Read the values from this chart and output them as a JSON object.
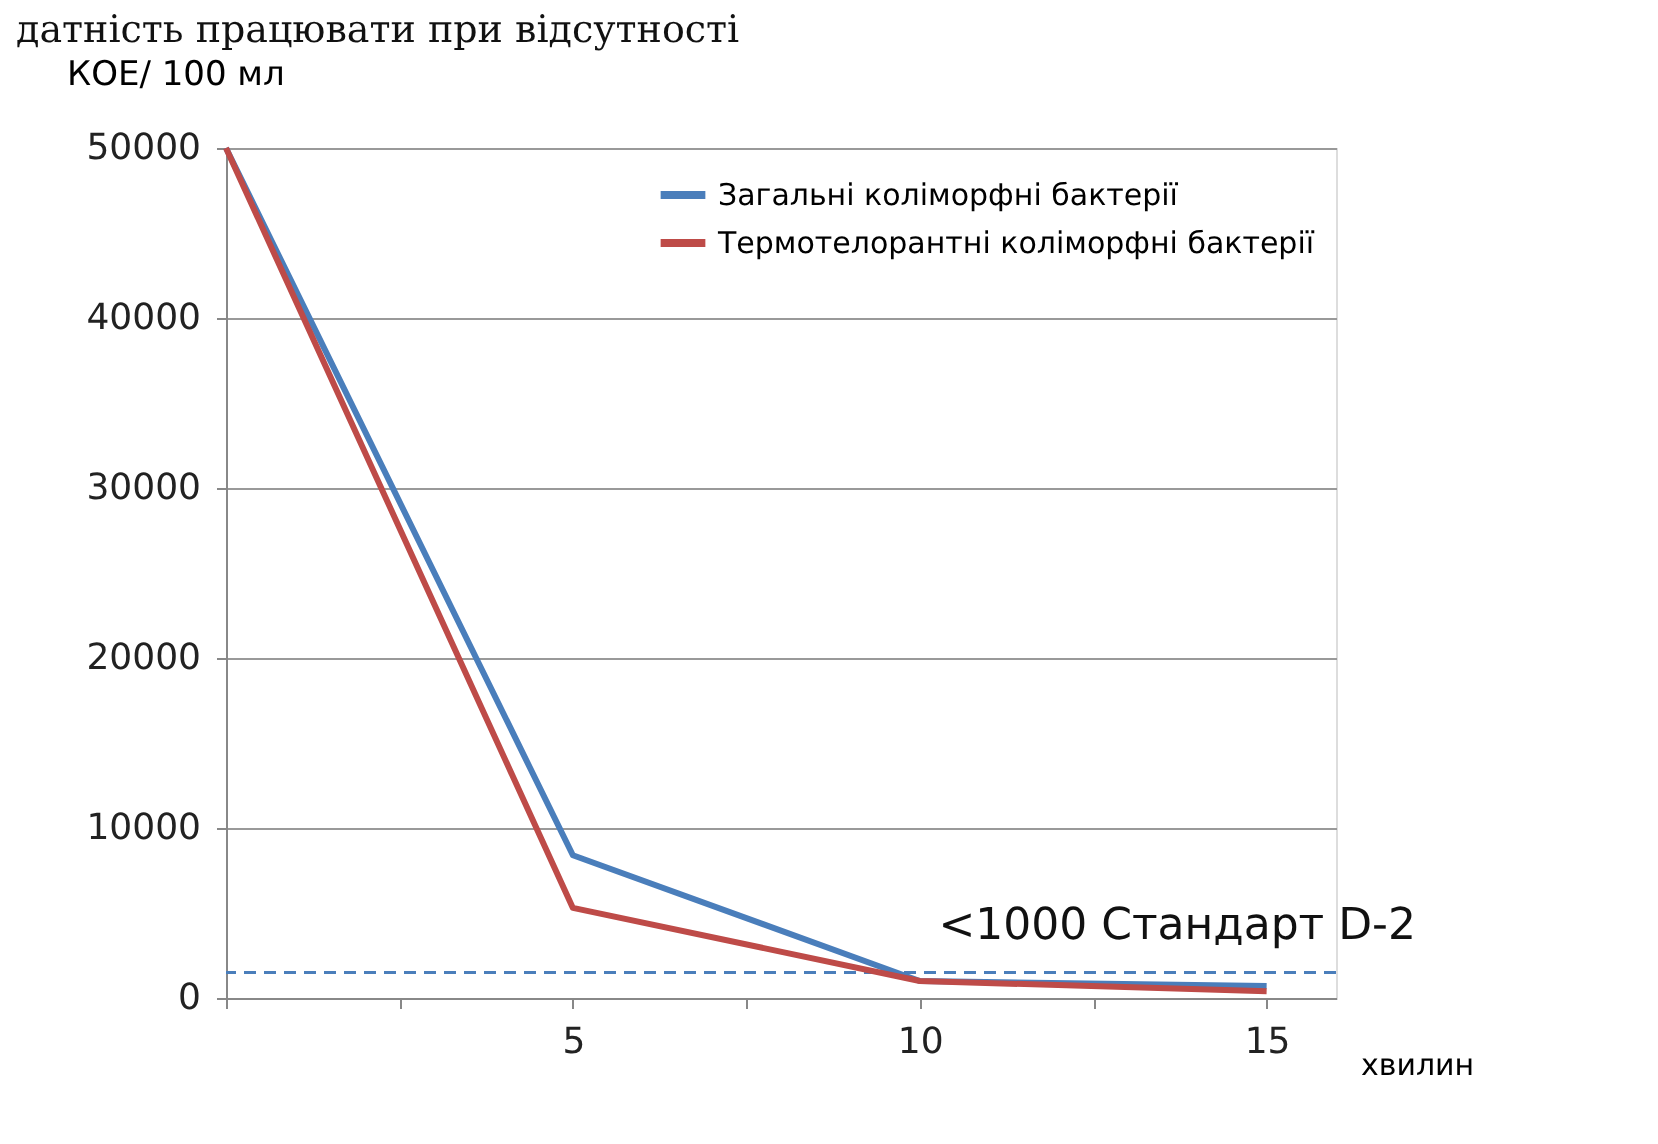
{
  "chart_data": {
    "type": "line",
    "annotations": [
      "датність працювати при відсутності"
    ],
    "xlabel": "хвилин",
    "ylabel": "КОЕ/ 100 мл",
    "x": [
      0,
      5,
      10,
      15
    ],
    "series": [
      {
        "name": "Загальні коліморфні бактерії",
        "color": "#4a7ebb",
        "values": [
          50000,
          8400,
          1000,
          700
        ]
      },
      {
        "name": "Термотелорантні коліморфні бактерії",
        "color": "#be4b48",
        "values": [
          50000,
          5300,
          1000,
          400
        ]
      }
    ],
    "xlim": [
      0,
      16
    ],
    "xticks": [
      {
        "value": 0,
        "label": null
      },
      {
        "value": 2.5,
        "label": null
      },
      5,
      {
        "value": 7.5,
        "label": null
      },
      10,
      {
        "value": 12.5,
        "label": null
      },
      15
    ],
    "ylim": [
      0,
      50000
    ],
    "yticks": [
      0,
      10000,
      20000,
      30000,
      40000,
      50000
    ],
    "ref_lines": [
      {
        "axis": "y",
        "value": 1500,
        "label": "<1000 Стандарт D-2",
        "color": "#4a7ebb",
        "line_style": "dashed"
      }
    ],
    "grid": "y",
    "legend": "top right",
    "marker": "none",
    "line_style": "solid"
  }
}
